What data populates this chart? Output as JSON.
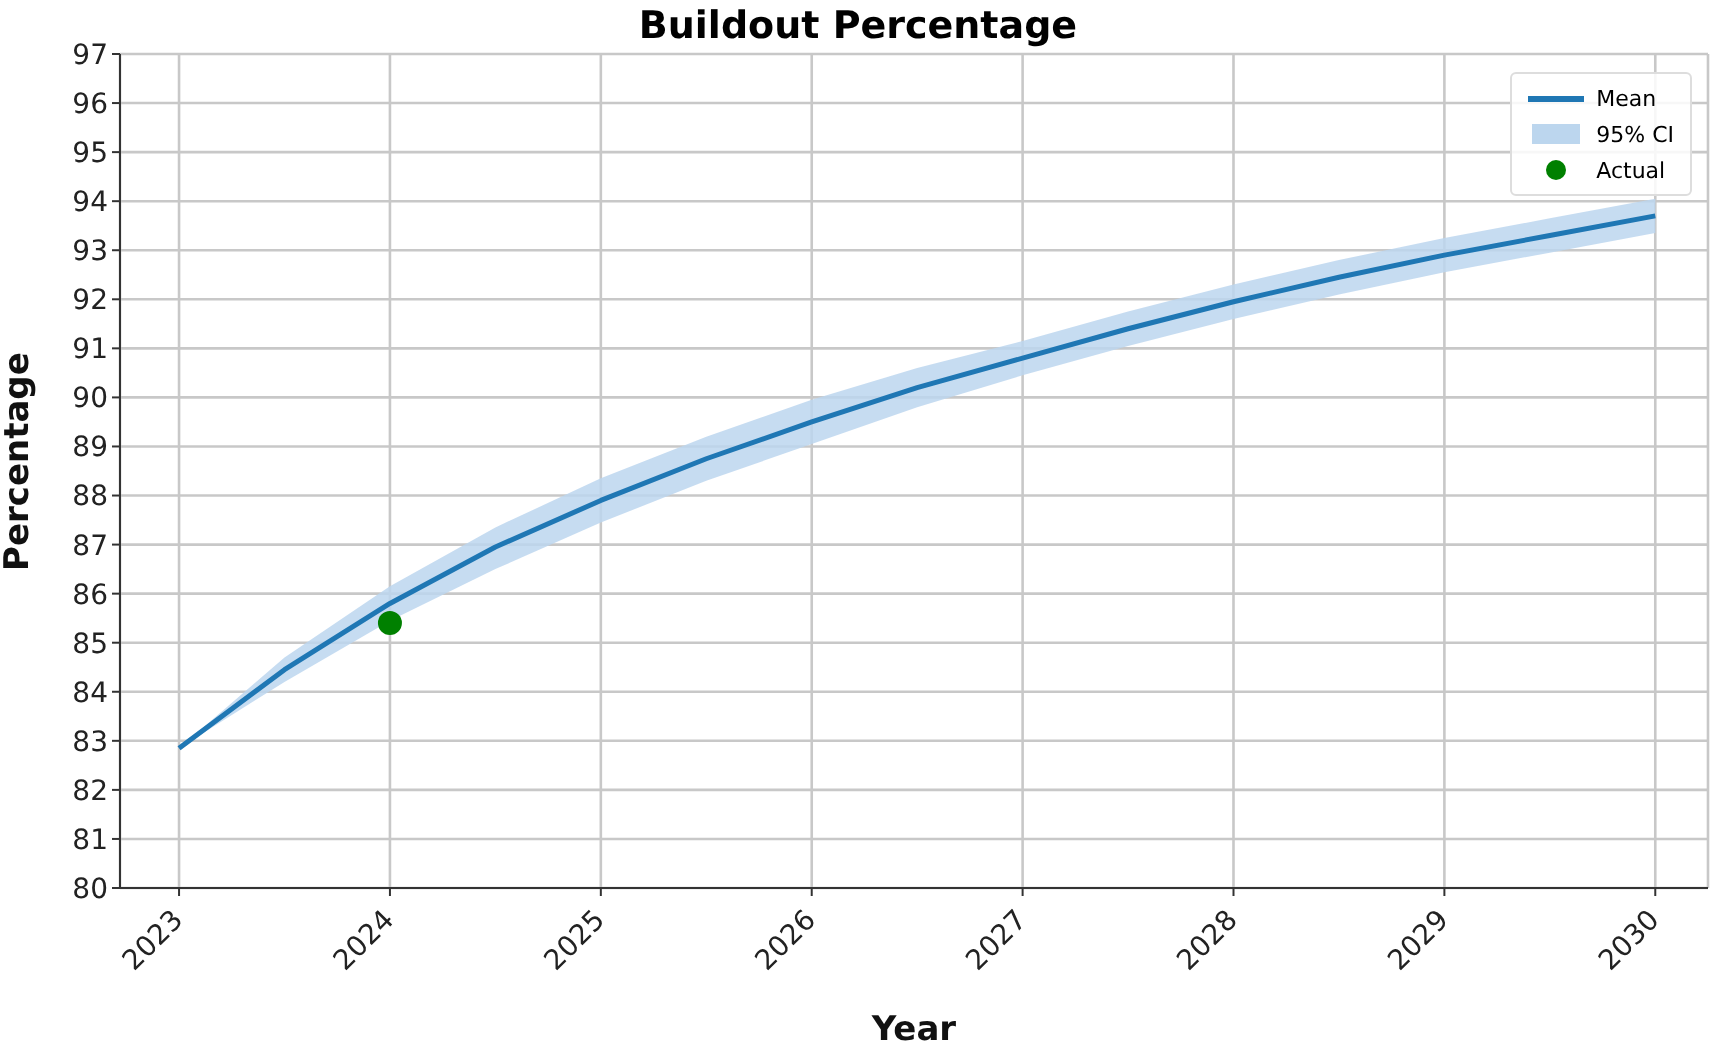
{
  "chart_data": {
    "type": "line",
    "title": "Buildout Percentage",
    "xlabel": "Year",
    "ylabel": "Percentage",
    "xlim": [
      2022.72,
      2030.25
    ],
    "xticks": [
      2023,
      2024,
      2025,
      2026,
      2027,
      2028,
      2029,
      2030
    ],
    "ylim": [
      80,
      97
    ],
    "yticks": [
      80,
      81,
      82,
      83,
      84,
      85,
      86,
      87,
      88,
      89,
      90,
      91,
      92,
      93,
      94,
      95,
      96,
      97
    ],
    "grid": true,
    "legend": "top right",
    "line_style": "solid",
    "annotations": [
      "95% CI"
    ],
    "series": [
      {
        "name": "Mean",
        "color": "#1f77b4",
        "x": [
          2023,
          2023.5,
          2024,
          2024.5,
          2025,
          2025.5,
          2026,
          2026.5,
          2027,
          2027.5,
          2028,
          2028.5,
          2029,
          2029.5,
          2030
        ],
        "values": [
          82.85,
          84.45,
          85.8,
          86.95,
          87.9,
          88.75,
          89.5,
          90.2,
          90.8,
          91.4,
          91.95,
          92.45,
          92.9,
          93.3,
          93.7
        ],
        "lower": [
          82.85,
          84.2,
          85.45,
          86.5,
          87.45,
          88.3,
          89.05,
          89.8,
          90.45,
          91.05,
          91.6,
          92.1,
          92.55,
          92.95,
          93.35
        ],
        "upper": [
          82.85,
          84.7,
          86.15,
          87.35,
          88.35,
          89.2,
          89.95,
          90.6,
          91.15,
          91.75,
          92.3,
          92.8,
          93.25,
          93.65,
          94.05
        ]
      },
      {
        "name": "Actual",
        "type": "scatter",
        "marker": "circle",
        "color": "#008000",
        "x": [
          2024
        ],
        "values": [
          85.4
        ]
      }
    ]
  }
}
